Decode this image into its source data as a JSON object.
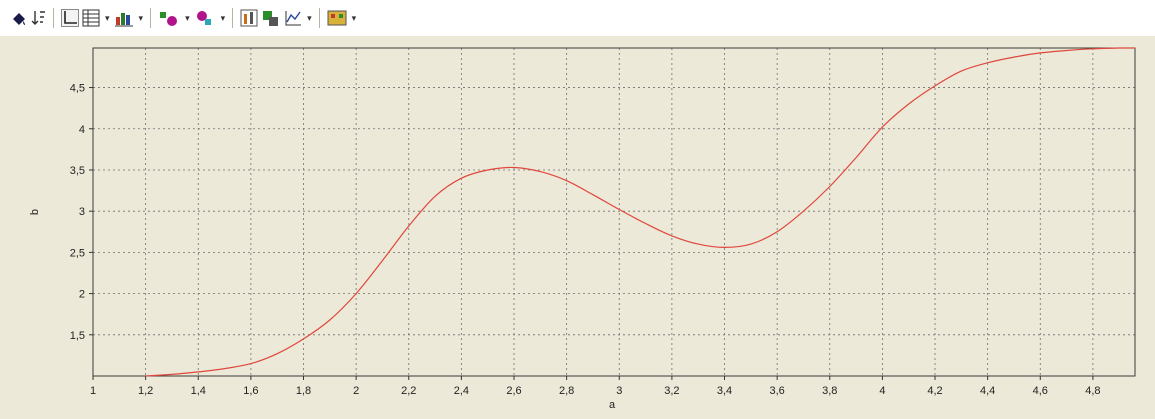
{
  "toolbar": {
    "icons": [
      "fill-bucket-icon",
      "sort-icon",
      "axes-icon",
      "table-icon",
      "bar-chart-icon",
      "series-add-icon",
      "series-remove-icon",
      "column-chart-icon",
      "stack-chart-icon",
      "line-chart-icon",
      "palette-icon"
    ]
  },
  "colors": {
    "series": "#e0473d",
    "grid": "#6f6f6f",
    "plot_bg": "#ece9d8"
  },
  "chart_data": {
    "type": "line",
    "title": "",
    "xlabel": "a",
    "ylabel": "b",
    "xlim": [
      1,
      4.96
    ],
    "ylim": [
      1,
      4.98
    ],
    "grid": true,
    "x_ticks": [
      "1",
      "1,2",
      "1,4",
      "1,6",
      "1,8",
      "2",
      "2,2",
      "2,4",
      "2,6",
      "2,8",
      "3",
      "3,2",
      "3,4",
      "3,6",
      "3,8",
      "4",
      "4,2",
      "4,4",
      "4,6",
      "4,8"
    ],
    "y_ticks": [
      "1,5",
      "2",
      "2,5",
      "3",
      "3,5",
      "4",
      "4,5"
    ],
    "series": [
      {
        "x": [
          1.2,
          1.3,
          1.4,
          1.5,
          1.6,
          1.7,
          1.8,
          1.9,
          2.0,
          2.1,
          2.2,
          2.3,
          2.4,
          2.5,
          2.6,
          2.7,
          2.8,
          2.9,
          3.0,
          3.1,
          3.2,
          3.3,
          3.4,
          3.5,
          3.6,
          3.7,
          3.8,
          3.9,
          4.0,
          4.1,
          4.2,
          4.3,
          4.4,
          4.5,
          4.6,
          4.7,
          4.8,
          4.9
        ],
        "y": [
          1.0,
          1.02,
          1.05,
          1.09,
          1.15,
          1.27,
          1.45,
          1.68,
          2.0,
          2.4,
          2.82,
          3.18,
          3.4,
          3.5,
          3.53,
          3.48,
          3.37,
          3.2,
          3.02,
          2.85,
          2.7,
          2.6,
          2.56,
          2.6,
          2.75,
          3.0,
          3.3,
          3.65,
          4.02,
          4.3,
          4.52,
          4.7,
          4.8,
          4.87,
          4.92,
          4.95,
          4.97,
          4.98
        ]
      }
    ]
  }
}
